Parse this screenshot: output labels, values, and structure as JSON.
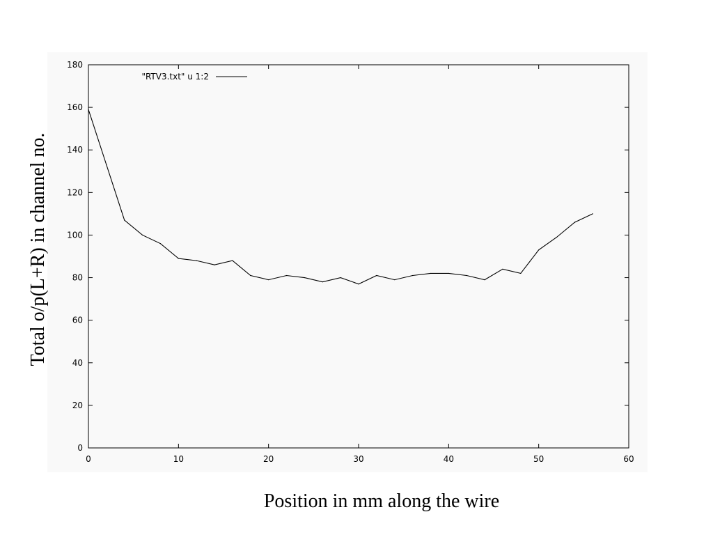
{
  "chart_data": {
    "type": "line",
    "title": "",
    "xlabel": "Position in mm along the wire",
    "ylabel": "Total o/p(L+R) in channel no.",
    "xlim": [
      0,
      60
    ],
    "ylim": [
      0,
      180
    ],
    "x_ticks": [
      0,
      10,
      20,
      30,
      40,
      50,
      60
    ],
    "y_ticks": [
      0,
      20,
      40,
      60,
      80,
      100,
      120,
      140,
      160,
      180
    ],
    "grid": false,
    "legend_position": "top-left",
    "colors": {
      "line": "#000000",
      "plot_background": "#f9f9f9",
      "frame": "#000000"
    },
    "series": [
      {
        "name": "\"RTV3.txt\" u 1:2",
        "x": [
          0,
          2,
          4,
          6,
          8,
          10,
          12,
          14,
          16,
          18,
          20,
          22,
          24,
          26,
          28,
          30,
          32,
          34,
          36,
          38,
          40,
          42,
          44,
          46,
          48,
          50,
          52,
          54,
          56
        ],
        "y": [
          159,
          133,
          107,
          100,
          96,
          89,
          88,
          86,
          88,
          81,
          79,
          81,
          80,
          78,
          80,
          77,
          81,
          79,
          81,
          82,
          82,
          81,
          79,
          84,
          82,
          93,
          99,
          106,
          110
        ]
      }
    ]
  }
}
